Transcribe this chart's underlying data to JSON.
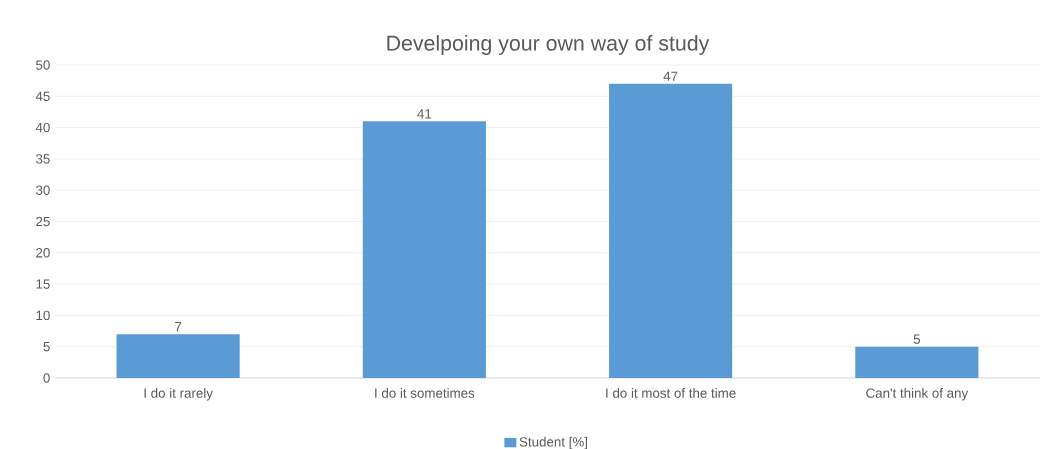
{
  "chart_data": {
    "type": "bar",
    "title": "Develpoing your own way of study",
    "categories": [
      "I do it rarely",
      "I do it sometimes",
      "I do it most of the time",
      "Can't think of any"
    ],
    "series": [
      {
        "name": "Student [%]",
        "color": "#5b9bd5",
        "values": [
          7,
          41,
          47,
          5
        ]
      }
    ],
    "ylim": [
      0,
      50
    ],
    "yticks": [
      0,
      5,
      10,
      15,
      20,
      25,
      30,
      35,
      40,
      45,
      50
    ],
    "grid": "y",
    "legend": "bottom",
    "data_labels": true
  }
}
